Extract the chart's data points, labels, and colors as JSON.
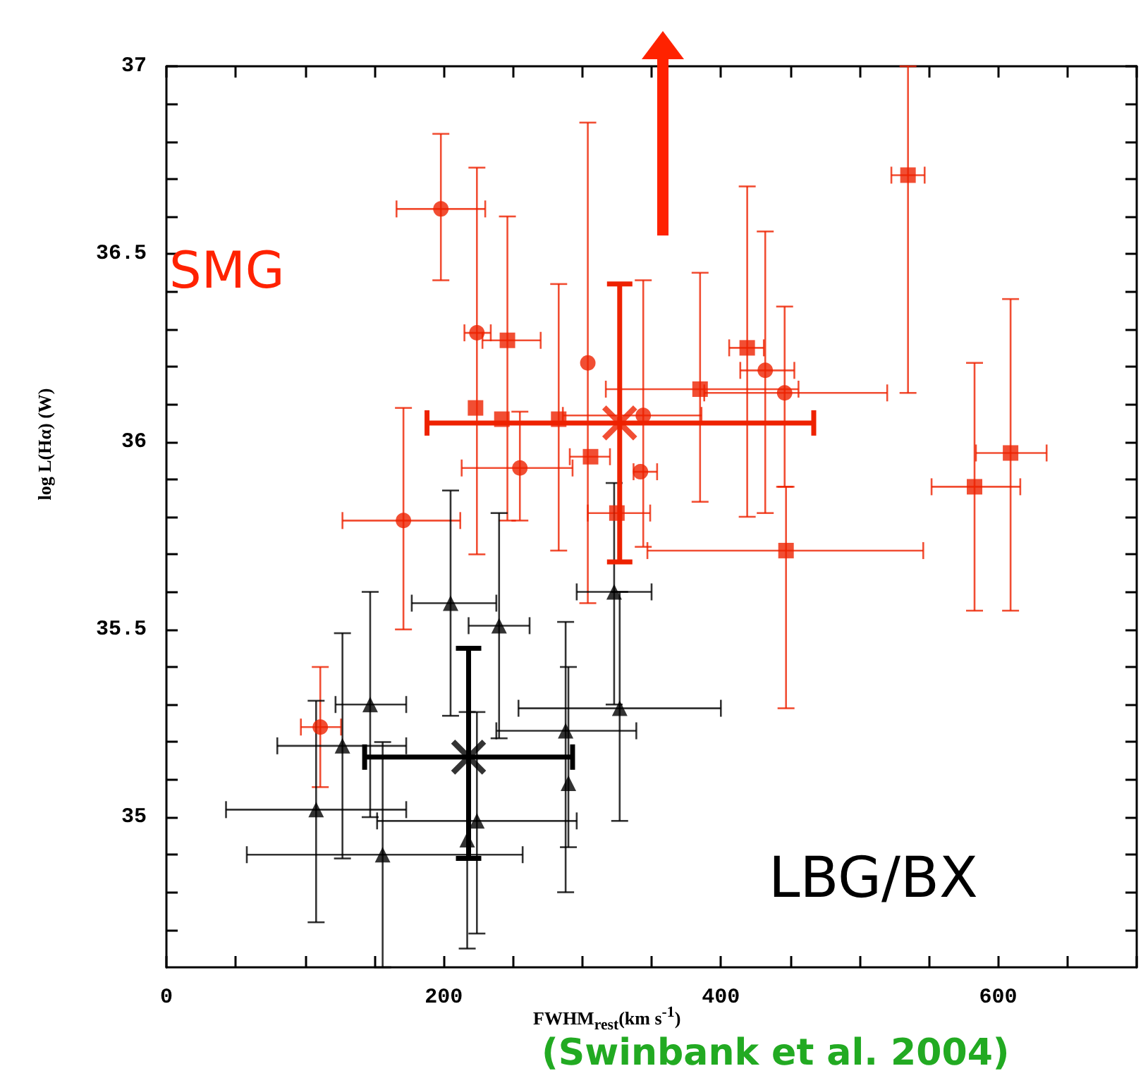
{
  "chart_data": {
    "type": "scatter",
    "xlabel": "FWHM$_{rest}$(km s$^{-1}$)",
    "ylabel": "log L(Hα) (W)",
    "annotations": [
      "SMG",
      "LBG/BX",
      "(Swinbank et al. 2004)"
    ],
    "xlim": [
      0,
      700
    ],
    "ylim": [
      34.6,
      37
    ],
    "xticks": [
      0,
      {
        "value": 50,
        "label": null
      },
      {
        "value": 100,
        "label": null
      },
      {
        "value": 150,
        "label": null
      },
      200,
      {
        "value": 250,
        "label": null
      },
      {
        "value": 300,
        "label": null
      },
      {
        "value": 350,
        "label": null
      },
      400,
      {
        "value": 450,
        "label": null
      },
      {
        "value": 500,
        "label": null
      },
      {
        "value": 550,
        "label": null
      },
      600,
      {
        "value": 650,
        "label": null
      },
      {
        "value": 700,
        "label": null
      }
    ],
    "yticks": [
      {
        "value": 34.7,
        "label": null
      },
      {
        "value": 34.8,
        "label": null
      },
      {
        "value": 34.9,
        "label": null
      },
      35,
      {
        "value": 35.1,
        "label": null
      },
      {
        "value": 35.2,
        "label": null
      },
      {
        "value": 35.3,
        "label": null
      },
      {
        "value": 35.4,
        "label": null
      },
      35.5,
      {
        "value": 35.6,
        "label": null
      },
      {
        "value": 35.7,
        "label": null
      },
      {
        "value": 35.8,
        "label": null
      },
      {
        "value": 35.9,
        "label": null
      },
      36,
      {
        "value": 36.1,
        "label": null
      },
      {
        "value": 36.2,
        "label": null
      },
      {
        "value": 36.3,
        "label": null
      },
      {
        "value": 36.4,
        "label": null
      },
      36.5,
      {
        "value": 36.6,
        "label": null
      },
      {
        "value": 36.7,
        "label": null
      },
      {
        "value": 36.8,
        "label": null
      },
      {
        "value": 36.9,
        "label": null
      },
      37
    ],
    "series": [
      {
        "marker": "circle",
        "color": "#ee2200",
        "x": [
          198,
          224,
          304,
          255,
          171,
          342,
          344,
          432,
          446,
          111
        ],
        "values": [
          36.62,
          36.29,
          36.21,
          35.93,
          35.79,
          35.92,
          36.07,
          36.19,
          36.13,
          35.24
        ],
        "errors": [
          [
            36.43,
            36.82
          ],
          [
            35.7,
            36.73
          ],
          [
            35.57,
            36.85
          ],
          [
            35.79,
            36.08
          ],
          [
            35.5,
            36.09
          ],
          null,
          [
            35.72,
            36.43
          ],
          [
            35.81,
            36.56
          ],
          [
            35.88,
            36.36
          ],
          [
            35.08,
            35.4
          ]
        ],
        "xerrors": [
          [
            166,
            230
          ],
          [
            215,
            234
          ],
          null,
          [
            213,
            293
          ],
          [
            127,
            212
          ],
          [
            337,
            354
          ],
          [
            286,
            386
          ],
          [
            414,
            453
          ],
          [
            388,
            520
          ],
          [
            97,
            126
          ]
        ]
      },
      {
        "marker": "square",
        "color": "#ee2200",
        "x": [
          246,
          223,
          242,
          283,
          306,
          325,
          385,
          419,
          447,
          535,
          583,
          609
        ],
        "values": [
          36.27,
          36.09,
          36.06,
          36.06,
          35.96,
          35.81,
          36.14,
          36.25,
          35.71,
          36.71,
          35.88,
          35.97
        ],
        "errors": [
          [
            35.79,
            36.6
          ],
          null,
          null,
          [
            35.71,
            36.42
          ],
          null,
          null,
          [
            35.84,
            36.45
          ],
          [
            35.8,
            36.68
          ],
          [
            35.29,
            35.88
          ],
          [
            36.13,
            37
          ],
          [
            35.55,
            36.21
          ],
          [
            35.55,
            36.38
          ]
        ],
        "xerrors": [
          [
            228,
            270
          ],
          null,
          null,
          null,
          [
            291,
            320
          ],
          [
            304,
            349
          ],
          [
            317,
            456
          ],
          [
            406,
            431
          ],
          [
            347,
            546
          ],
          [
            523,
            547
          ],
          [
            552,
            616
          ],
          [
            584,
            635
          ]
        ]
      },
      {
        "marker": "triangle",
        "color": "#000000",
        "x": [
          205,
          240,
          147,
          127,
          108,
          156,
          217,
          224,
          288,
          290,
          323,
          327
        ],
        "values": [
          35.57,
          35.51,
          35.3,
          35.19,
          35.02,
          34.9,
          34.94,
          34.99,
          35.23,
          35.09,
          35.6,
          35.29
        ],
        "errors": [
          [
            35.27,
            35.87
          ],
          [
            35.21,
            35.81
          ],
          [
            35.0,
            35.6
          ],
          [
            34.89,
            35.49
          ],
          [
            34.72,
            35.31
          ],
          [
            34.6,
            35.2
          ],
          [
            34.65,
            35.28
          ],
          [
            34.69,
            35.28
          ],
          [
            34.8,
            35.52
          ],
          [
            34.92,
            35.4
          ],
          [
            35.3,
            35.89
          ],
          [
            34.99,
            35.6
          ]
        ],
        "xerrors": [
          [
            177,
            238
          ],
          [
            218,
            262
          ],
          [
            122,
            173
          ],
          [
            80,
            173
          ],
          [
            43,
            173
          ],
          [
            58,
            257
          ],
          null,
          [
            152,
            296
          ],
          [
            238,
            339
          ],
          null,
          [
            296,
            350
          ],
          [
            254,
            400
          ]
        ]
      },
      {
        "marker": "cross",
        "color": "#ee2200",
        "x": [
          327
        ],
        "values": [
          36.05
        ],
        "errors": [
          [
            35.68,
            36.42
          ]
        ],
        "xerrors": [
          [
            188,
            467
          ]
        ]
      },
      {
        "marker": "cross",
        "color": "#000000",
        "x": [
          218
        ],
        "values": [
          35.16
        ],
        "errors": [
          [
            34.89,
            35.45
          ]
        ],
        "xerrors": [
          [
            143,
            293
          ]
        ]
      }
    ]
  }
}
